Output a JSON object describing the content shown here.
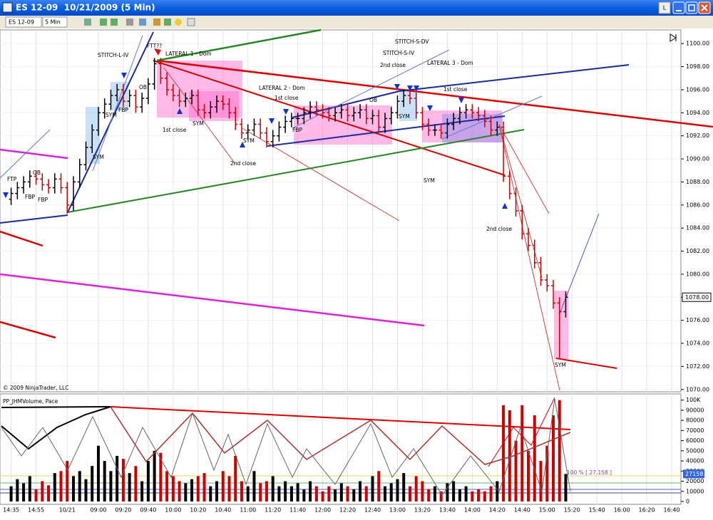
{
  "window": {
    "title": "ES 12-09  10/21/2009 (5 Min)",
    "button": "L"
  },
  "toolbar": {
    "instrument": "ES 12-09",
    "interval": "5 Min"
  },
  "chart_data": {
    "type": "ohlc",
    "categories": [
      "14:35",
      null,
      null,
      null,
      "14:55",
      null,
      null,
      null,
      null,
      "10/21",
      null,
      null,
      null,
      null,
      "09:00",
      null,
      null,
      null,
      "09:20",
      null,
      null,
      null,
      "09:40",
      null,
      null,
      null,
      "10:00",
      null,
      null,
      null,
      "10:20",
      null,
      null,
      null,
      "10:40",
      null,
      null,
      null,
      "11:00",
      null,
      null,
      null,
      "11:20",
      null,
      null,
      null,
      "11:40",
      null,
      null,
      null,
      "12:00",
      null,
      null,
      null,
      "12:20",
      null,
      null,
      null,
      "12:40",
      null,
      null,
      null,
      "13:00",
      null,
      null,
      null,
      "13:20",
      null,
      null,
      null,
      "13:40",
      null,
      null,
      null,
      "14:00",
      null,
      null,
      null,
      "14:20",
      null,
      null,
      null,
      "14:40",
      null,
      null,
      null,
      "15:00",
      null,
      null,
      null,
      "15:20",
      null,
      null,
      null,
      "15:40",
      null,
      null,
      null,
      "16:00",
      null,
      null,
      null,
      "16:20",
      null,
      null,
      null,
      "16:40"
    ],
    "open": [
      1086.5,
      1087,
      1087.5,
      1088,
      1088.5,
      1088.25,
      1087.75,
      1087.5,
      1088.25,
      1087.5,
      1086,
      1088,
      1089.5,
      1091,
      1092.5,
      1094,
      1094.75,
      1095.5,
      1096,
      1095,
      1095.5,
      1094.5,
      1095.25,
      1096.5,
      1098.25,
      1097,
      1096,
      1095.5,
      1095,
      1095.25,
      1095.5,
      1094.25,
      1094,
      1094.5,
      1095,
      1094.75,
      1094,
      1093,
      1092.25,
      1092.5,
      1093,
      1092.25,
      1091.5,
      1092,
      1092.75,
      1093.25,
      1093.5,
      1093.5,
      1094,
      1094.5,
      1094.25,
      1094,
      1093.75,
      1094,
      1094.25,
      1093.75,
      1094,
      1094.25,
      1093.5,
      1093.75,
      1092.75,
      1093.5,
      1094,
      1095,
      1095.5,
      1095.25,
      1094,
      1093,
      1092.5,
      1092.5,
      1092.25,
      1093,
      1093.5,
      1094,
      1094.25,
      1094,
      1093.75,
      1093.25,
      1092.5,
      1092.75,
      1088.5,
      1087,
      1085.5,
      1083.5,
      1082.5,
      1081,
      1079.5,
      1079,
      1077.5,
      1076.75,
      null,
      null,
      null,
      null,
      null,
      null,
      null,
      null,
      null,
      null,
      null,
      null,
      null,
      null,
      null,
      null,
      null
    ],
    "high": [
      1087.5,
      1088,
      1088.5,
      1089,
      1089,
      1088.75,
      1088.25,
      1088.75,
      1088.75,
      1088,
      1088.5,
      1090,
      1091.5,
      1093,
      1094.5,
      1095.25,
      1096,
      1096.5,
      1096.5,
      1096,
      1096,
      1095.75,
      1097,
      1098.75,
      1098.75,
      1097.5,
      1096.5,
      1096,
      1095.75,
      1096,
      1096,
      1094.75,
      1095,
      1095.5,
      1095.5,
      1095.25,
      1094.5,
      1093.5,
      1093,
      1093.5,
      1093.5,
      1092.75,
      1092.5,
      1093.25,
      1093.75,
      1094,
      1094,
      1094.5,
      1095,
      1095,
      1094.75,
      1094.5,
      1094.5,
      1094.75,
      1094.75,
      1094.5,
      1094.75,
      1094.75,
      1094.25,
      1094.25,
      1094,
      1094.5,
      1095.5,
      1096,
      1096,
      1095.75,
      1094.5,
      1093.5,
      1093,
      1093,
      1093.5,
      1094,
      1094.5,
      1094.75,
      1094.75,
      1094.5,
      1094.25,
      1093.75,
      1093.25,
      1093.25,
      1089,
      1087.5,
      1086,
      1084,
      1083,
      1081.5,
      1080,
      1079.5,
      1078,
      1078.5,
      null,
      null,
      null,
      null,
      null,
      null,
      null,
      null,
      null,
      null,
      null,
      null,
      null,
      null,
      null,
      null,
      null
    ],
    "low": [
      1086,
      1086.5,
      1087,
      1087.5,
      1087.75,
      1087.25,
      1087,
      1087,
      1087,
      1085.25,
      1085.5,
      1087.5,
      1089,
      1090.5,
      1092,
      1093.5,
      1094.25,
      1095,
      1094.5,
      1094.5,
      1094,
      1094,
      1094.75,
      1096,
      1096.5,
      1095.5,
      1095,
      1094.5,
      1094.5,
      1094.75,
      1093.75,
      1093.5,
      1093.5,
      1094,
      1094.25,
      1093.5,
      1092.5,
      1091.75,
      1091.75,
      1092,
      1091.75,
      1091,
      1091,
      1091.5,
      1092.25,
      1092.75,
      1093,
      1093,
      1093.5,
      1093.75,
      1093.5,
      1093.25,
      1093.25,
      1093.5,
      1093.25,
      1093.25,
      1093.5,
      1093,
      1093,
      1092.25,
      1092.25,
      1093,
      1093.5,
      1094.5,
      1094.75,
      1093.5,
      1092.5,
      1092,
      1092,
      1091.75,
      1091.75,
      1092.5,
      1093,
      1093.5,
      1093.5,
      1093.25,
      1092.75,
      1092,
      1092,
      1088,
      1086.5,
      1085,
      1083,
      1082,
      1080.5,
      1079,
      1078.5,
      1077,
      1072.75,
      1076.25,
      null,
      null,
      null,
      null,
      null,
      null,
      null,
      null,
      null,
      null,
      null,
      null,
      null,
      null,
      null,
      null,
      null
    ],
    "close": [
      1087,
      1087.5,
      1088,
      1088.5,
      1088.25,
      1087.75,
      1087.5,
      1088.25,
      1087.5,
      1086,
      1088,
      1089.5,
      1091,
      1092.5,
      1094,
      1094.75,
      1095.5,
      1096,
      1095,
      1095.5,
      1094.5,
      1095.25,
      1096.5,
      1098.25,
      1097,
      1096,
      1095.5,
      1095,
      1095.25,
      1095.5,
      1094.25,
      1094,
      1094.5,
      1095,
      1094.75,
      1094,
      1093,
      1092.25,
      1092.5,
      1093,
      1092.25,
      1091.5,
      1092,
      1092.75,
      1093.25,
      1093.5,
      1093.5,
      1094,
      1094.5,
      1094.25,
      1094,
      1093.75,
      1094,
      1094.25,
      1093.75,
      1094,
      1094.25,
      1093.5,
      1093.75,
      1092.75,
      1093.5,
      1094,
      1095,
      1095.5,
      1095.25,
      1094,
      1093,
      1092.5,
      1092.5,
      1092.25,
      1093,
      1093.5,
      1094,
      1094.25,
      1094,
      1093.75,
      1093.25,
      1092.5,
      1092.75,
      1088.5,
      1087,
      1085.5,
      1083.5,
      1082.5,
      1081,
      1079.5,
      1079,
      1077.5,
      1076.75,
      1078,
      null,
      null,
      null,
      null,
      null,
      null,
      null,
      null,
      null,
      null,
      null,
      null,
      null,
      null,
      null,
      null,
      null
    ],
    "up_color": "#000000",
    "down_color": "#cc0000",
    "ylim": [
      1069.8,
      1101
    ],
    "yticks": [
      {
        "value": 1070,
        "label": "1070.00"
      },
      {
        "value": 1072,
        "label": "1072.00"
      },
      {
        "value": 1074,
        "label": "1074.00"
      },
      {
        "value": 1076,
        "label": "1076.00"
      },
      {
        "value": 1078,
        "label": "1078.00"
      },
      {
        "value": 1080,
        "label": "1080.00"
      },
      {
        "value": 1082,
        "label": "1082.00"
      },
      {
        "value": 1084,
        "label": "1084.00"
      },
      {
        "value": 1086,
        "label": "1086.00"
      },
      {
        "value": 1088,
        "label": "1088.00"
      },
      {
        "value": 1090,
        "label": "1090.00"
      },
      {
        "value": 1092,
        "label": "1092.00"
      },
      {
        "value": 1094,
        "label": "1094.00"
      },
      {
        "value": 1096,
        "label": "1096.00"
      },
      {
        "value": 1098,
        "label": "1098.00"
      },
      {
        "value": 1100,
        "label": "1100.00"
      }
    ],
    "last_price": {
      "value": 1078,
      "label": "1078.00"
    },
    "copyright": "© 2009 NinjaTrader, LLC",
    "annotations": [
      "FTP",
      "OB",
      "FBP",
      "FBP",
      "STITCH-L-IV",
      "SYM",
      "FBP",
      "OB",
      "FTT??",
      "LATERAL 1 - Dom",
      "SYM",
      "1st close",
      "SYM",
      "2nd close",
      "SYM",
      "LATERAL 2 - Dom",
      "1st close",
      "FBP",
      "OB",
      "2nd close",
      "STITCH-S-DV",
      "STITCH-S-IV",
      "SYM",
      "LATERAL 3 - Dom",
      "1st close",
      "SYM",
      "2nd close",
      "SYM"
    ],
    "volume": {
      "title": "PP_JHMVolume, Pace",
      "values": [
        15000,
        22000,
        18000,
        25000,
        12000,
        20000,
        16000,
        28000,
        30000,
        40000,
        25000,
        30000,
        22000,
        35000,
        55000,
        40000,
        30000,
        45000,
        42000,
        28000,
        35000,
        20000,
        40000,
        50000,
        48000,
        30000,
        25000,
        20000,
        18000,
        22000,
        25000,
        28000,
        15000,
        20000,
        30000,
        25000,
        45000,
        20000,
        15000,
        30000,
        18000,
        20000,
        25000,
        15000,
        20000,
        15000,
        18000,
        12000,
        20000,
        15000,
        10000,
        15000,
        12000,
        18000,
        15000,
        12000,
        20000,
        15000,
        25000,
        30000,
        15000,
        18000,
        22000,
        28000,
        15000,
        25000,
        20000,
        12000,
        15000,
        10000,
        18000,
        20000,
        12000,
        15000,
        10000,
        12000,
        10000,
        15000,
        20000,
        95000,
        90000,
        60000,
        95000,
        50000,
        85000,
        40000,
        55000,
        85000,
        100000,
        27158,
        null,
        null,
        null,
        null,
        null,
        null,
        null,
        null,
        null,
        null,
        null,
        null,
        null,
        null,
        null,
        null,
        null
      ],
      "ylim": [
        0,
        104000
      ],
      "yticks": [
        0,
        10000,
        20000,
        30000,
        40000,
        50000,
        60000,
        70000,
        80000,
        90000,
        {
          "value": 100000,
          "label": "100K"
        }
      ],
      "legend": "100 % [ 27,158 ]",
      "marker": 27158
    }
  }
}
